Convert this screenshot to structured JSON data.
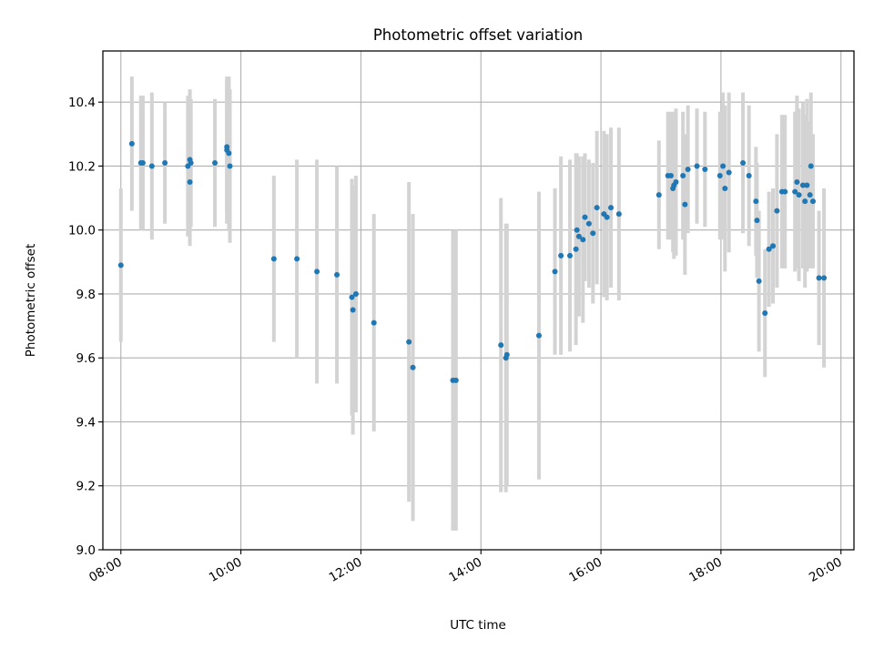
{
  "chart_data": {
    "type": "scatter",
    "title": "Photometric offset variation",
    "xlabel": "UTC time",
    "ylabel": "Photometric offset",
    "xlim": [
      "07:42",
      "20:13"
    ],
    "ylim": [
      9.0,
      10.56
    ],
    "grid": true,
    "x_ticks": [
      "08:00",
      "10:00",
      "12:00",
      "14:00",
      "16:00",
      "18:00",
      "20:00"
    ],
    "y_ticks": [
      "9.0",
      "9.2",
      "9.4",
      "9.6",
      "9.8",
      "10.0",
      "10.2",
      "10.4"
    ],
    "colors": {
      "point": "#1f77b4",
      "errorbar": "#d3d3d3",
      "grid": "#b0b0b0"
    },
    "series": [
      {
        "x": [
          "08:00",
          "08:11",
          "08:20",
          "08:22",
          "08:31",
          "08:44",
          "09:07",
          "09:09",
          "09:09",
          "09:10",
          "09:34",
          "09:46",
          "09:46",
          "09:48",
          "09:49",
          "10:33",
          "10:56",
          "11:16",
          "11:36",
          "11:51",
          "11:52",
          "11:55",
          "12:13",
          "12:48",
          "12:52",
          "13:32",
          "13:35",
          "14:20",
          "14:25",
          "14:26",
          "14:58",
          "15:14",
          "15:20",
          "15:29",
          "15:35",
          "15:36",
          "15:38",
          "15:42",
          "15:44",
          "15:48",
          "15:52",
          "15:56",
          "16:03",
          "16:06",
          "16:10",
          "16:18",
          "16:58",
          "17:07",
          "17:10",
          "17:12",
          "17:13",
          "17:15",
          "17:22",
          "17:24",
          "17:27",
          "17:36",
          "17:44",
          "17:59",
          "18:02",
          "18:04",
          "18:08",
          "18:22",
          "18:28",
          "18:35",
          "18:36",
          "18:38",
          "18:44",
          "18:48",
          "18:52",
          "18:56",
          "19:01",
          "19:04",
          "19:14",
          "19:16",
          "19:18",
          "19:22",
          "19:24",
          "19:26",
          "19:29",
          "19:30",
          "19:32",
          "19:38",
          "19:43"
        ],
        "y": [
          9.89,
          10.27,
          10.21,
          10.21,
          10.2,
          10.21,
          10.2,
          10.22,
          10.15,
          10.21,
          10.21,
          10.26,
          10.25,
          10.24,
          10.2,
          9.91,
          9.91,
          9.87,
          9.86,
          9.79,
          9.75,
          9.8,
          9.71,
          9.65,
          9.57,
          9.53,
          9.53,
          9.64,
          9.6,
          9.61,
          9.67,
          9.87,
          9.92,
          9.92,
          9.94,
          10.0,
          9.98,
          9.97,
          10.04,
          10.02,
          9.99,
          10.07,
          10.05,
          10.04,
          10.07,
          10.05,
          10.11,
          10.17,
          10.17,
          10.13,
          10.14,
          10.15,
          10.17,
          10.08,
          10.19,
          10.2,
          10.19,
          10.17,
          10.2,
          10.13,
          10.18,
          10.21,
          10.17,
          10.09,
          10.03,
          9.84,
          9.74,
          9.94,
          9.95,
          10.06,
          10.12,
          10.12,
          10.12,
          10.15,
          10.11,
          10.14,
          10.09,
          10.14,
          10.11,
          10.2,
          10.09,
          9.85,
          9.85
        ],
        "yerr": [
          0.24,
          0.21,
          0.21,
          0.21,
          0.23,
          0.19,
          0.22,
          0.22,
          0.2,
          0.2,
          0.2,
          0.2,
          0.23,
          0.24,
          0.24,
          0.26,
          0.31,
          0.35,
          0.34,
          0.37,
          0.39,
          0.37,
          0.34,
          0.5,
          0.48,
          0.47,
          0.47,
          0.46,
          0.42,
          0.41,
          0.45,
          0.26,
          0.31,
          0.3,
          0.3,
          0.24,
          0.25,
          0.26,
          0.2,
          0.2,
          0.22,
          0.24,
          0.26,
          0.26,
          0.25,
          0.27,
          0.17,
          0.2,
          0.2,
          0.2,
          0.23,
          0.23,
          0.2,
          0.22,
          0.2,
          0.18,
          0.18,
          0.2,
          0.23,
          0.26,
          0.25,
          0.22,
          0.22,
          0.17,
          0.18,
          0.22,
          0.2,
          0.18,
          0.18,
          0.24,
          0.24,
          0.24,
          0.25,
          0.27,
          0.27,
          0.26,
          0.27,
          0.27,
          0.23,
          0.23,
          0.21,
          0.21,
          0.28
        ]
      }
    ]
  }
}
